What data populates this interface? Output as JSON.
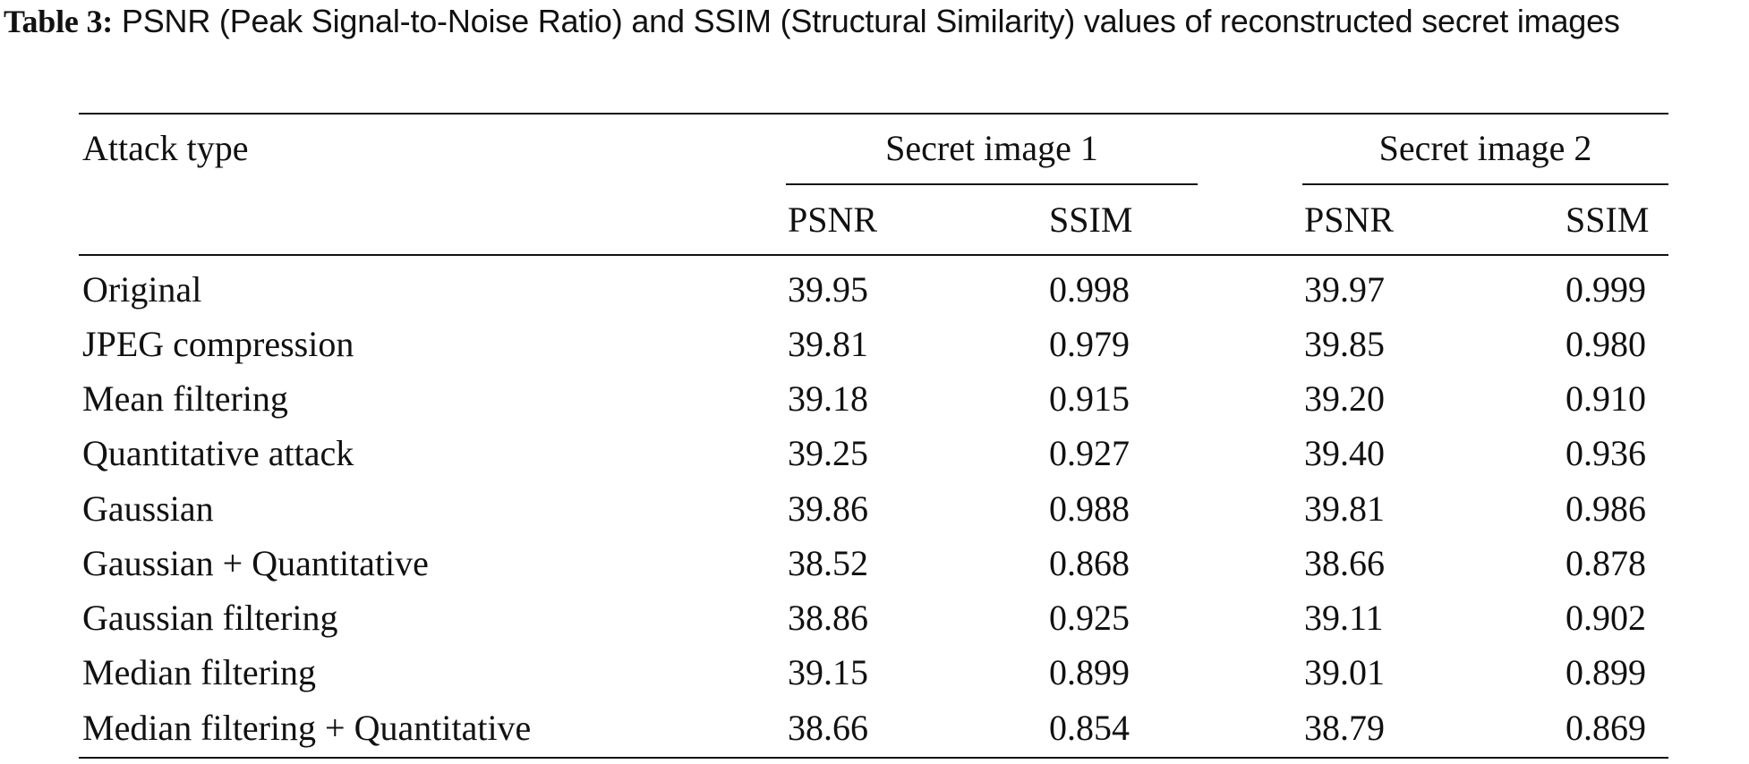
{
  "caption": {
    "label": "Table 3:",
    "text": " PSNR (Peak Signal-to-Noise Ratio) and SSIM (Structural Similarity) values of reconstructed secret images"
  },
  "table": {
    "stub_header": "Attack type",
    "groups": [
      {
        "label": "Secret image 1",
        "columns": [
          "PSNR",
          "SSIM"
        ]
      },
      {
        "label": "Secret image 2",
        "columns": [
          "PSNR",
          "SSIM"
        ]
      }
    ],
    "rows": [
      {
        "attack": "Original",
        "values": [
          "39.95",
          "0.998",
          "39.97",
          "0.999"
        ]
      },
      {
        "attack": "JPEG compression",
        "values": [
          "39.81",
          "0.979",
          "39.85",
          "0.980"
        ]
      },
      {
        "attack": "Mean filtering",
        "values": [
          "39.18",
          "0.915",
          "39.20",
          "0.910"
        ]
      },
      {
        "attack": "Quantitative attack",
        "values": [
          "39.25",
          "0.927",
          "39.40",
          "0.936"
        ]
      },
      {
        "attack": "Gaussian",
        "values": [
          "39.86",
          "0.988",
          "39.81",
          "0.986"
        ]
      },
      {
        "attack": "Gaussian + Quantitative",
        "values": [
          "38.52",
          "0.868",
          "38.66",
          "0.878"
        ]
      },
      {
        "attack": "Gaussian filtering",
        "values": [
          "38.86",
          "0.925",
          "39.11",
          "0.902"
        ]
      },
      {
        "attack": "Median filtering",
        "values": [
          "39.15",
          "0.899",
          "39.01",
          "0.899"
        ]
      },
      {
        "attack": "Median filtering + Quantitative",
        "values": [
          "38.66",
          "0.854",
          "38.79",
          "0.869"
        ]
      }
    ]
  }
}
